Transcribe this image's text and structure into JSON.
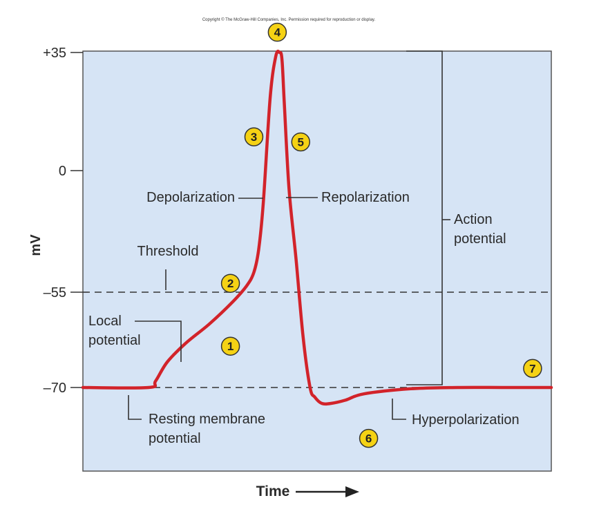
{
  "copyright": "Copyright © The McGraw-Hill Companies, Inc. Permission required for reproduction or display.",
  "colors": {
    "plot_background": "#d6e4f5",
    "trace": "#d2232a",
    "marker_fill": "#f5d214",
    "marker_stroke": "#333333",
    "text": "#2a2a2a"
  },
  "chart_data": {
    "type": "line",
    "title": "",
    "xlabel": "Time",
    "ylabel": "mV",
    "x_axis_arrow": true,
    "y_ticks": [
      {
        "value": 35,
        "label": "+35"
      },
      {
        "value": 0,
        "label": "0"
      },
      {
        "value": -55,
        "label": "–55"
      },
      {
        "value": -70,
        "label": "–70"
      }
    ],
    "ylim": [
      -95,
      35
    ],
    "xlim": [
      0,
      100
    ],
    "reference_lines": [
      {
        "value": -55,
        "style": "dashed"
      },
      {
        "value": -70,
        "style": "dashed"
      }
    ],
    "series": [
      {
        "x": [
          0,
          14,
          15.5,
          18,
          22,
          27,
          32,
          35,
          36.5,
          37.5,
          38.5,
          40,
          41.2,
          42,
          42.5,
          43,
          44,
          45.5,
          47,
          48.5,
          49.5,
          51,
          53,
          56,
          60,
          70,
          80,
          90,
          100
        ],
        "values": [
          -70,
          -70,
          -69,
          -66,
          -63,
          -60,
          -56.5,
          -52,
          -46,
          -36,
          -15,
          22,
          34,
          35,
          33,
          20,
          -8,
          -40,
          -62,
          -70,
          -71.5,
          -72.5,
          -72.5,
          -72,
          -71,
          -70.2,
          -70,
          -70,
          -70
        ]
      }
    ],
    "annotations": [
      {
        "text": "Depolarization"
      },
      {
        "text": "Repolarization"
      },
      {
        "text": "Threshold"
      },
      {
        "text": "Local\npotential"
      },
      {
        "text": "Resting membrane\npotential"
      },
      {
        "text": "Hyperpolarization"
      },
      {
        "text": "Action\npotential"
      }
    ],
    "markers": [
      {
        "label": "1",
        "x": 31.5,
        "y": -63.5
      },
      {
        "label": "2",
        "x": 31.5,
        "y": -51
      },
      {
        "label": "3",
        "x": 36.5,
        "y": 10
      },
      {
        "label": "4",
        "x": 41.5,
        "y": 41
      },
      {
        "label": "5",
        "x": 46.5,
        "y": 8.5
      },
      {
        "label": "6",
        "x": 61,
        "y": -78
      },
      {
        "label": "7",
        "x": 96,
        "y": -67
      }
    ]
  }
}
